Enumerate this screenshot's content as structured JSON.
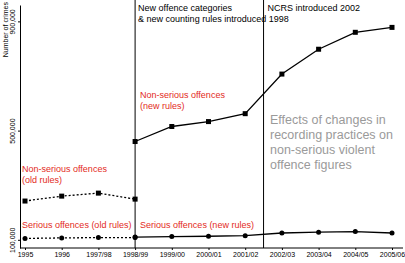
{
  "chart_data": {
    "type": "line",
    "ylabel": "Number of crimes",
    "categories": [
      "1995",
      "1996",
      "1997/98",
      "1998/99",
      "1999/00",
      "2000/01",
      "2001/02",
      "2002/03",
      "2003/04",
      "2004/05",
      "2005/06"
    ],
    "ylim": [
      70000,
      960000
    ],
    "yticks": [
      {
        "value": 100000,
        "label": "100,000"
      },
      {
        "value": 500000,
        "label": "500,000"
      },
      {
        "value": 900000,
        "label": "900,000"
      }
    ],
    "grid": false,
    "series": [
      {
        "name": "Non-serious offences (old rules)",
        "color": "#000000",
        "line_style": "dotted",
        "marker": "square",
        "values": [
          242000,
          260000,
          271000,
          249000,
          null,
          null,
          null,
          null,
          null,
          null,
          null
        ]
      },
      {
        "name": "Non-serious offences (new rules)",
        "color": "#000000",
        "line_style": "solid",
        "marker": "square",
        "values": [
          null,
          null,
          null,
          460000,
          515000,
          533000,
          562000,
          707000,
          798000,
          860000,
          878000
        ]
      },
      {
        "name": "Serious offences (old rules)",
        "color": "#000000",
        "line_style": "dotted",
        "marker": "circle",
        "values": [
          105000,
          107000,
          108000,
          108000,
          null,
          null,
          null,
          null,
          null,
          null,
          null
        ]
      },
      {
        "name": "Serious offences (new rules)",
        "color": "#000000",
        "line_style": "solid",
        "marker": "circle",
        "values": [
          null,
          null,
          null,
          110000,
          112000,
          113000,
          115000,
          125000,
          128000,
          130000,
          125000
        ]
      }
    ],
    "annotations": [
      {
        "text": [
          "New offence categories",
          "& new counting rules introduced 1998"
        ]
      },
      {
        "text": [
          "NCRS introduced 2002"
        ]
      },
      {
        "text": [
          "Effects of changes in",
          "recording practices on",
          "non-serious violent",
          "offence figures"
        ]
      }
    ]
  }
}
